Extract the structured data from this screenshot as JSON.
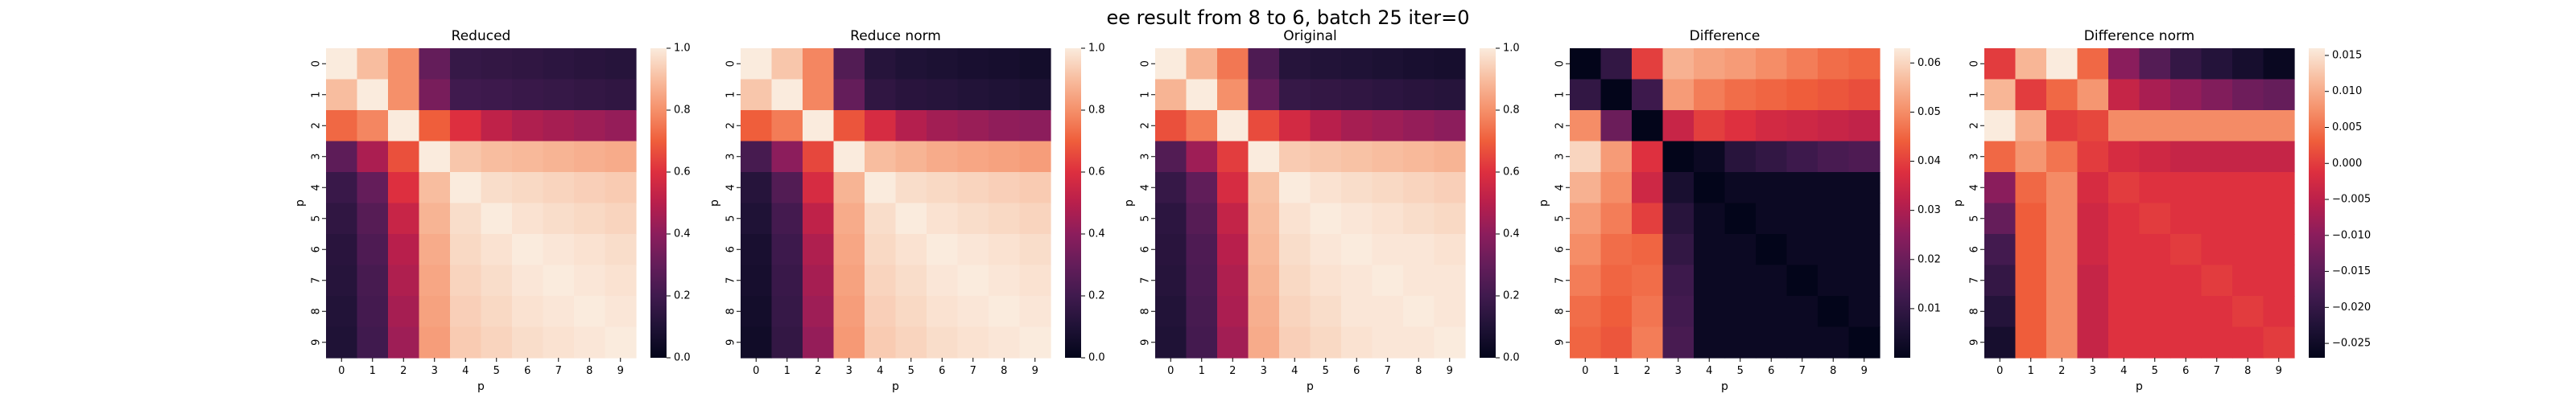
{
  "figure": {
    "suptitle": "ee result from 8 to 6, batch 25 iter=0"
  },
  "colors": {
    "colormap": "rocket",
    "stops": [
      [
        0.0,
        "#03051a"
      ],
      [
        0.1,
        "#1f1236"
      ],
      [
        0.2,
        "#401a4e"
      ],
      [
        0.3,
        "#641d5a"
      ],
      [
        0.4,
        "#8c1d5c"
      ],
      [
        0.5,
        "#b81f4c"
      ],
      [
        0.6,
        "#dd2f3f"
      ],
      [
        0.7,
        "#ef5e3b"
      ],
      [
        0.8,
        "#f5906a"
      ],
      [
        0.9,
        "#f8bd9f"
      ],
      [
        1.0,
        "#faebdd"
      ]
    ]
  },
  "chart_data": [
    {
      "type": "heatmap",
      "title": "Reduced",
      "xlabel": "p",
      "ylabel": "p",
      "x_ticks": [
        "0",
        "1",
        "2",
        "3",
        "4",
        "5",
        "6",
        "7",
        "8",
        "9"
      ],
      "y_ticks": [
        "0",
        "1",
        "2",
        "3",
        "4",
        "5",
        "6",
        "7",
        "8",
        "9"
      ],
      "colorbar": {
        "vmin": 0.0,
        "vmax": 1.0,
        "ticks": [
          0.0,
          0.2,
          0.4,
          0.6,
          0.8,
          1.0
        ],
        "tick_labels": [
          "0.0",
          "0.2",
          "0.4",
          "0.6",
          "0.8",
          "1.0"
        ]
      },
      "values": [
        [
          1.0,
          0.9,
          0.8,
          0.3,
          0.17,
          0.16,
          0.15,
          0.14,
          0.13,
          0.12
        ],
        [
          0.9,
          1.0,
          0.8,
          0.35,
          0.2,
          0.19,
          0.18,
          0.17,
          0.16,
          0.15
        ],
        [
          0.72,
          0.78,
          1.0,
          0.7,
          0.6,
          0.52,
          0.48,
          0.46,
          0.44,
          0.42
        ],
        [
          0.28,
          0.47,
          0.67,
          1.0,
          0.92,
          0.9,
          0.89,
          0.88,
          0.87,
          0.86
        ],
        [
          0.18,
          0.3,
          0.6,
          0.9,
          1.0,
          0.97,
          0.96,
          0.95,
          0.94,
          0.93
        ],
        [
          0.15,
          0.26,
          0.54,
          0.88,
          0.97,
          1.0,
          0.98,
          0.97,
          0.96,
          0.95
        ],
        [
          0.13,
          0.24,
          0.5,
          0.86,
          0.96,
          0.98,
          1.0,
          0.99,
          0.98,
          0.97
        ],
        [
          0.12,
          0.22,
          0.48,
          0.85,
          0.95,
          0.97,
          0.99,
          1.0,
          0.99,
          0.98
        ],
        [
          0.11,
          0.21,
          0.46,
          0.84,
          0.94,
          0.96,
          0.98,
          0.99,
          1.0,
          0.99
        ],
        [
          0.1,
          0.2,
          0.44,
          0.83,
          0.93,
          0.95,
          0.97,
          0.98,
          0.99,
          1.0
        ]
      ]
    },
    {
      "type": "heatmap",
      "title": "Reduce norm",
      "xlabel": "p",
      "ylabel": "p",
      "x_ticks": [
        "0",
        "1",
        "2",
        "3",
        "4",
        "5",
        "6",
        "7",
        "8",
        "9"
      ],
      "y_ticks": [
        "0",
        "1",
        "2",
        "3",
        "4",
        "5",
        "6",
        "7",
        "8",
        "9"
      ],
      "colorbar": {
        "vmin": 0.0,
        "vmax": 1.0,
        "ticks": [
          0.0,
          0.2,
          0.4,
          0.6,
          0.8,
          1.0
        ],
        "tick_labels": [
          "0.0",
          "0.2",
          "0.4",
          "0.6",
          "0.8",
          "1.0"
        ]
      },
      "values": [
        [
          1.0,
          0.92,
          0.78,
          0.25,
          0.12,
          0.1,
          0.09,
          0.08,
          0.07,
          0.06
        ],
        [
          0.92,
          1.0,
          0.78,
          0.3,
          0.15,
          0.13,
          0.12,
          0.11,
          0.1,
          0.09
        ],
        [
          0.7,
          0.76,
          1.0,
          0.68,
          0.58,
          0.49,
          0.45,
          0.43,
          0.41,
          0.4
        ],
        [
          0.22,
          0.4,
          0.65,
          1.0,
          0.9,
          0.88,
          0.86,
          0.85,
          0.84,
          0.83
        ],
        [
          0.12,
          0.25,
          0.58,
          0.88,
          1.0,
          0.97,
          0.96,
          0.95,
          0.94,
          0.93
        ],
        [
          0.1,
          0.21,
          0.52,
          0.86,
          0.97,
          1.0,
          0.98,
          0.97,
          0.96,
          0.95
        ],
        [
          0.08,
          0.19,
          0.48,
          0.85,
          0.96,
          0.98,
          1.0,
          0.99,
          0.98,
          0.97
        ],
        [
          0.07,
          0.18,
          0.46,
          0.84,
          0.95,
          0.97,
          0.99,
          1.0,
          0.99,
          0.98
        ],
        [
          0.06,
          0.17,
          0.44,
          0.83,
          0.94,
          0.96,
          0.98,
          0.99,
          1.0,
          0.99
        ],
        [
          0.05,
          0.16,
          0.42,
          0.82,
          0.93,
          0.95,
          0.97,
          0.98,
          0.99,
          1.0
        ]
      ]
    },
    {
      "type": "heatmap",
      "title": "Original",
      "xlabel": "p",
      "ylabel": "p",
      "x_ticks": [
        "0",
        "1",
        "2",
        "3",
        "4",
        "5",
        "6",
        "7",
        "8",
        "9"
      ],
      "y_ticks": [
        "0",
        "1",
        "2",
        "3",
        "4",
        "5",
        "6",
        "7",
        "8",
        "9"
      ],
      "colorbar": {
        "vmin": 0.0,
        "vmax": 1.0,
        "ticks": [
          0.0,
          0.2,
          0.4,
          0.6,
          0.8,
          1.0
        ],
        "tick_labels": [
          "0.0",
          "0.2",
          "0.4",
          "0.6",
          "0.8",
          "1.0"
        ]
      },
      "values": [
        [
          1.0,
          0.88,
          0.75,
          0.24,
          0.12,
          0.11,
          0.1,
          0.09,
          0.08,
          0.07
        ],
        [
          0.88,
          1.0,
          0.8,
          0.3,
          0.17,
          0.16,
          0.15,
          0.14,
          0.13,
          0.12
        ],
        [
          0.67,
          0.76,
          1.0,
          0.66,
          0.57,
          0.5,
          0.46,
          0.44,
          0.42,
          0.4
        ],
        [
          0.25,
          0.44,
          0.63,
          1.0,
          0.93,
          0.92,
          0.91,
          0.9,
          0.89,
          0.88
        ],
        [
          0.17,
          0.29,
          0.58,
          0.91,
          1.0,
          0.98,
          0.97,
          0.96,
          0.95,
          0.94
        ],
        [
          0.14,
          0.26,
          0.53,
          0.9,
          0.98,
          1.0,
          0.99,
          0.98,
          0.97,
          0.96
        ],
        [
          0.13,
          0.24,
          0.5,
          0.89,
          0.97,
          0.99,
          1.0,
          0.99,
          0.99,
          0.98
        ],
        [
          0.12,
          0.23,
          0.48,
          0.88,
          0.96,
          0.98,
          0.99,
          1.0,
          0.99,
          0.99
        ],
        [
          0.11,
          0.22,
          0.47,
          0.87,
          0.95,
          0.97,
          0.99,
          0.99,
          1.0,
          0.99
        ],
        [
          0.1,
          0.21,
          0.45,
          0.86,
          0.94,
          0.96,
          0.98,
          0.99,
          0.99,
          1.0
        ]
      ]
    },
    {
      "type": "heatmap",
      "title": "Difference",
      "xlabel": "p",
      "ylabel": "p",
      "x_ticks": [
        "0",
        "1",
        "2",
        "3",
        "4",
        "5",
        "6",
        "7",
        "8",
        "9"
      ],
      "y_ticks": [
        "0",
        "1",
        "2",
        "3",
        "4",
        "5",
        "6",
        "7",
        "8",
        "9"
      ],
      "colorbar": {
        "vmin": 0.0,
        "vmax": 0.063,
        "ticks": [
          0.01,
          0.02,
          0.03,
          0.04,
          0.05,
          0.06
        ],
        "tick_labels": [
          "0.01",
          "0.02",
          "0.03",
          "0.04",
          "0.05",
          "0.06"
        ]
      },
      "values": [
        [
          0.0,
          0.01,
          0.04,
          0.055,
          0.053,
          0.052,
          0.05,
          0.048,
          0.046,
          0.045
        ],
        [
          0.01,
          0.0,
          0.012,
          0.052,
          0.048,
          0.046,
          0.045,
          0.044,
          0.043,
          0.042
        ],
        [
          0.05,
          0.02,
          0.0,
          0.034,
          0.04,
          0.038,
          0.036,
          0.035,
          0.034,
          0.033
        ],
        [
          0.06,
          0.052,
          0.038,
          0.0,
          0.002,
          0.008,
          0.01,
          0.012,
          0.014,
          0.015
        ],
        [
          0.055,
          0.05,
          0.035,
          0.005,
          0.0,
          0.002,
          0.002,
          0.002,
          0.002,
          0.002
        ],
        [
          0.052,
          0.048,
          0.04,
          0.008,
          0.002,
          0.0,
          0.002,
          0.002,
          0.002,
          0.002
        ],
        [
          0.05,
          0.046,
          0.045,
          0.01,
          0.002,
          0.002,
          0.0,
          0.002,
          0.002,
          0.002
        ],
        [
          0.048,
          0.045,
          0.046,
          0.012,
          0.002,
          0.002,
          0.002,
          0.0,
          0.002,
          0.002
        ],
        [
          0.046,
          0.044,
          0.047,
          0.013,
          0.002,
          0.002,
          0.002,
          0.002,
          0.0,
          0.002
        ],
        [
          0.045,
          0.043,
          0.048,
          0.014,
          0.002,
          0.002,
          0.002,
          0.002,
          0.002,
          0.0
        ]
      ]
    },
    {
      "type": "heatmap",
      "title": "Difference norm",
      "xlabel": "p",
      "ylabel": "p",
      "x_ticks": [
        "0",
        "1",
        "2",
        "3",
        "4",
        "5",
        "6",
        "7",
        "8",
        "9"
      ],
      "y_ticks": [
        "0",
        "1",
        "2",
        "3",
        "4",
        "5",
        "6",
        "7",
        "8",
        "9"
      ],
      "colorbar": {
        "vmin": -0.027,
        "vmax": 0.016,
        "ticks": [
          -0.025,
          -0.02,
          -0.015,
          -0.01,
          -0.005,
          0.0,
          0.005,
          0.01,
          0.015
        ],
        "tick_labels": [
          "−0.025",
          "−0.020",
          "−0.015",
          "−0.010",
          "−0.005",
          "0.000",
          "0.005",
          "0.010",
          "0.015"
        ]
      },
      "values": [
        [
          0.0,
          0.011,
          0.016,
          0.004,
          -0.01,
          -0.016,
          -0.02,
          -0.022,
          -0.024,
          -0.026
        ],
        [
          0.011,
          0.0,
          0.004,
          0.008,
          -0.004,
          -0.007,
          -0.009,
          -0.011,
          -0.013,
          -0.014
        ],
        [
          0.016,
          0.01,
          0.0,
          0.001,
          0.007,
          0.007,
          0.007,
          0.007,
          0.007,
          0.007
        ],
        [
          0.004,
          0.008,
          0.005,
          0.0,
          -0.002,
          -0.003,
          -0.004,
          -0.004,
          -0.004,
          -0.004
        ],
        [
          -0.01,
          0.004,
          0.007,
          -0.002,
          0.0,
          -0.001,
          -0.001,
          -0.001,
          -0.001,
          -0.001
        ],
        [
          -0.014,
          0.003,
          0.007,
          -0.003,
          -0.001,
          0.0,
          -0.001,
          -0.001,
          -0.001,
          -0.001
        ],
        [
          -0.018,
          0.003,
          0.007,
          -0.003,
          -0.001,
          -0.001,
          0.0,
          -0.001,
          -0.001,
          -0.001
        ],
        [
          -0.02,
          0.003,
          0.007,
          -0.004,
          -0.001,
          -0.001,
          -0.001,
          0.0,
          -0.001,
          -0.001
        ],
        [
          -0.022,
          0.003,
          0.007,
          -0.004,
          -0.001,
          -0.001,
          -0.001,
          -0.001,
          0.0,
          -0.001
        ],
        [
          -0.024,
          0.003,
          0.007,
          -0.004,
          -0.001,
          -0.001,
          -0.001,
          -0.001,
          -0.001,
          0.0
        ]
      ]
    }
  ]
}
